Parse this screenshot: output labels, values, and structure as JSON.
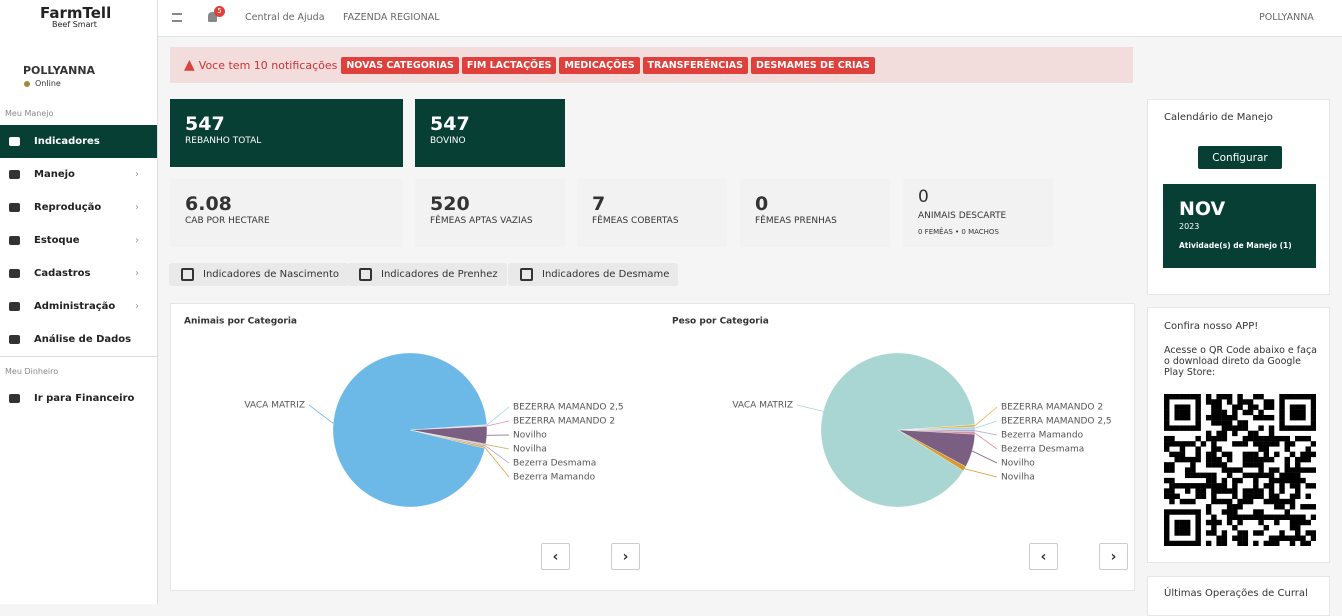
{
  "brand": {
    "name": "FarmTell",
    "tagline": "Beef Smart"
  },
  "topbar": {
    "badge": 5,
    "help": "Central de Ajuda",
    "farm": "FAZENDA REGIONAL",
    "user": "POLLYANNA"
  },
  "sidebar": {
    "user": "POLLYANNA",
    "status": "Online",
    "section1": "Meu Manejo",
    "menu": [
      "Indicadores",
      "Manejo",
      "Reprodução",
      "Estoque",
      "Cadastros",
      "Administração",
      "Análise de Dados"
    ],
    "section2": "Meu Dinheiro",
    "finance": "Ir para Financeiro"
  },
  "alert": {
    "text": "Voce tem 10 notificações",
    "buttons": [
      "NOVAS CATEGORIAS",
      "FIM LACTAÇÕES",
      "MEDICAÇÕES",
      "TRANSFERÊNCIAS",
      "DESMAMES DE CRIAS"
    ]
  },
  "stats": [
    {
      "value": 547,
      "label": "REBANHO TOTAL"
    },
    {
      "value": 547,
      "label": "BOVINO"
    },
    {
      "value": 6.08,
      "label": "CAB POR HECTARE"
    },
    {
      "value": 520,
      "label": "FÊMEAS APTAS VAZIAS"
    },
    {
      "value": 7,
      "label": "FÊMEAS COBERTAS"
    },
    {
      "value": 0,
      "label": "FÊMEAS PRENHAS"
    },
    {
      "value": 0,
      "label": "ANIMAIS DESCARTE",
      "sub": "0 FEMÊAS • 0 MACHOS"
    }
  ],
  "tabs": [
    "Indicadores de Nascimento",
    "Indicadores de Prenhez",
    "Indicadores de Desmame"
  ],
  "chart_data": [
    {
      "type": "pie",
      "title": "Animais por Categoria",
      "categories": [
        "BEZERRA MAMANDO 2,5",
        "BEZERRA MAMANDO 2",
        "Novilho",
        "Novilha",
        "Bezerra Desmama",
        "Bezerra Mamando",
        "VACA MATRIZ"
      ],
      "values": [
        1,
        1,
        20,
        1,
        2,
        2,
        520
      ],
      "colors": [
        "#9fd3e6",
        "#d89aa8",
        "#7b5f82",
        "#c9b35c",
        "#b3aacb",
        "#e3a13f",
        "#6cb9e8"
      ]
    },
    {
      "type": "pie",
      "title": "Peso por Categoria",
      "categories": [
        "BEZERRA MAMANDO 2",
        "BEZERRA MAMANDO 2,5",
        "Bezerra Mamando",
        "Bezerra Desmama",
        "Novilho",
        "Novilha",
        "VACA MATRIZ"
      ],
      "values": [
        0.5,
        0.5,
        0.5,
        0.5,
        7,
        1,
        90
      ],
      "colors": [
        "#e0b44a",
        "#9fd3e6",
        "#b3aacb",
        "#d8929f",
        "#7b5f82",
        "#d69a2e",
        "#a9d6d3"
      ]
    }
  ],
  "calendar": {
    "title": "Calendário de Manejo",
    "button": "Configurar",
    "month": "NOV",
    "year": 2023,
    "activity": "Atividade(s) de Manejo (1)"
  },
  "app": {
    "title": "Confira nosso APP!",
    "text": "Acesse o QR Code abaixo e faça o download direto da Google Play Store:"
  },
  "ops": {
    "title": "Últimas Operações de Curral"
  }
}
